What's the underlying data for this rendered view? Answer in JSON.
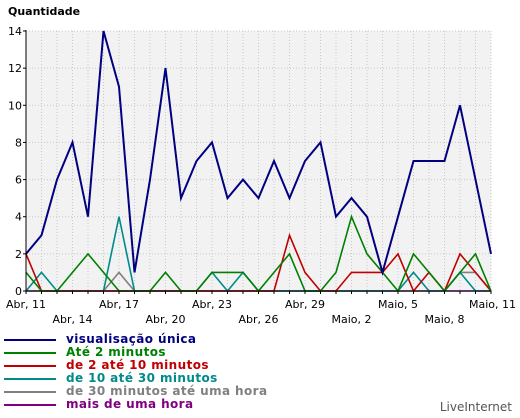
{
  "chart_data": {
    "type": "line",
    "ylabel": "Quantidade",
    "ylim": [
      0,
      14
    ],
    "yticks": [
      0,
      2,
      4,
      6,
      8,
      10,
      12,
      14
    ],
    "grid": true,
    "legend_position": "bottom",
    "x_tick_labels": [
      "Abr, 11",
      "Abr, 14",
      "Abr, 17",
      "Abr, 20",
      "Abr, 23",
      "Abr, 26",
      "Abr, 29",
      "Maio, 2",
      "Maio, 5",
      "Maio, 8",
      "Maio, 11"
    ],
    "x": [
      "Abr, 11",
      "Abr, 12",
      "Abr, 13",
      "Abr, 14",
      "Abr, 15",
      "Abr, 16",
      "Abr, 17",
      "Abr, 18",
      "Abr, 19",
      "Abr, 20",
      "Abr, 21",
      "Abr, 22",
      "Abr, 23",
      "Abr, 24",
      "Abr, 25",
      "Abr, 26",
      "Abr, 27",
      "Abr, 28",
      "Abr, 29",
      "Abr, 30",
      "Maio, 1",
      "Maio, 2",
      "Maio, 3",
      "Maio, 4",
      "Maio, 5",
      "Maio, 6",
      "Maio, 7",
      "Maio, 8",
      "Maio, 9",
      "Maio, 10",
      "Maio, 11"
    ],
    "series": [
      {
        "name": "visualisação única",
        "color": "#000080",
        "values": [
          2,
          3,
          6,
          8,
          4,
          14,
          11,
          1,
          6,
          12,
          5,
          7,
          8,
          5,
          6,
          5,
          7,
          5,
          7,
          8,
          4,
          5,
          4,
          1,
          4,
          7,
          7,
          7,
          10,
          6,
          2
        ]
      },
      {
        "name": "Até 2 minutos",
        "color": "#008000",
        "values": [
          1,
          0,
          0,
          1,
          2,
          1,
          0,
          0,
          0,
          1,
          0,
          0,
          1,
          1,
          1,
          0,
          1,
          2,
          0,
          0,
          1,
          4,
          2,
          1,
          0,
          2,
          1,
          0,
          1,
          2,
          0
        ]
      },
      {
        "name": "de 2 até 10 minutos",
        "color": "#c00000",
        "values": [
          2,
          0,
          0,
          0,
          0,
          0,
          0,
          0,
          0,
          0,
          0,
          0,
          0,
          0,
          0,
          0,
          0,
          3,
          1,
          0,
          0,
          1,
          1,
          1,
          2,
          0,
          1,
          0,
          2,
          1,
          0
        ]
      },
      {
        "name": "de 10 até 30 minutos",
        "color": "#008b8b",
        "values": [
          0,
          1,
          0,
          0,
          0,
          0,
          4,
          0,
          0,
          0,
          0,
          0,
          1,
          0,
          1,
          0,
          0,
          0,
          0,
          0,
          0,
          0,
          0,
          0,
          0,
          1,
          0,
          0,
          1,
          0,
          0
        ]
      },
      {
        "name": "de 30 minutos até uma hora",
        "color": "#808080",
        "values": [
          0,
          0,
          0,
          0,
          0,
          0,
          1,
          0,
          0,
          0,
          0,
          0,
          0,
          0,
          0,
          0,
          0,
          0,
          0,
          0,
          0,
          0,
          0,
          0,
          0,
          0,
          0,
          0,
          1,
          1,
          0
        ]
      },
      {
        "name": "mais de uma hora",
        "color": "#800080",
        "values": [
          0,
          0,
          0,
          0,
          0,
          0,
          0,
          0,
          0,
          0,
          0,
          0,
          0,
          0,
          0,
          0,
          0,
          0,
          0,
          0,
          0,
          0,
          0,
          0,
          0,
          0,
          0,
          0,
          0,
          0,
          0
        ]
      }
    ]
  },
  "branding": "LiveInternet"
}
